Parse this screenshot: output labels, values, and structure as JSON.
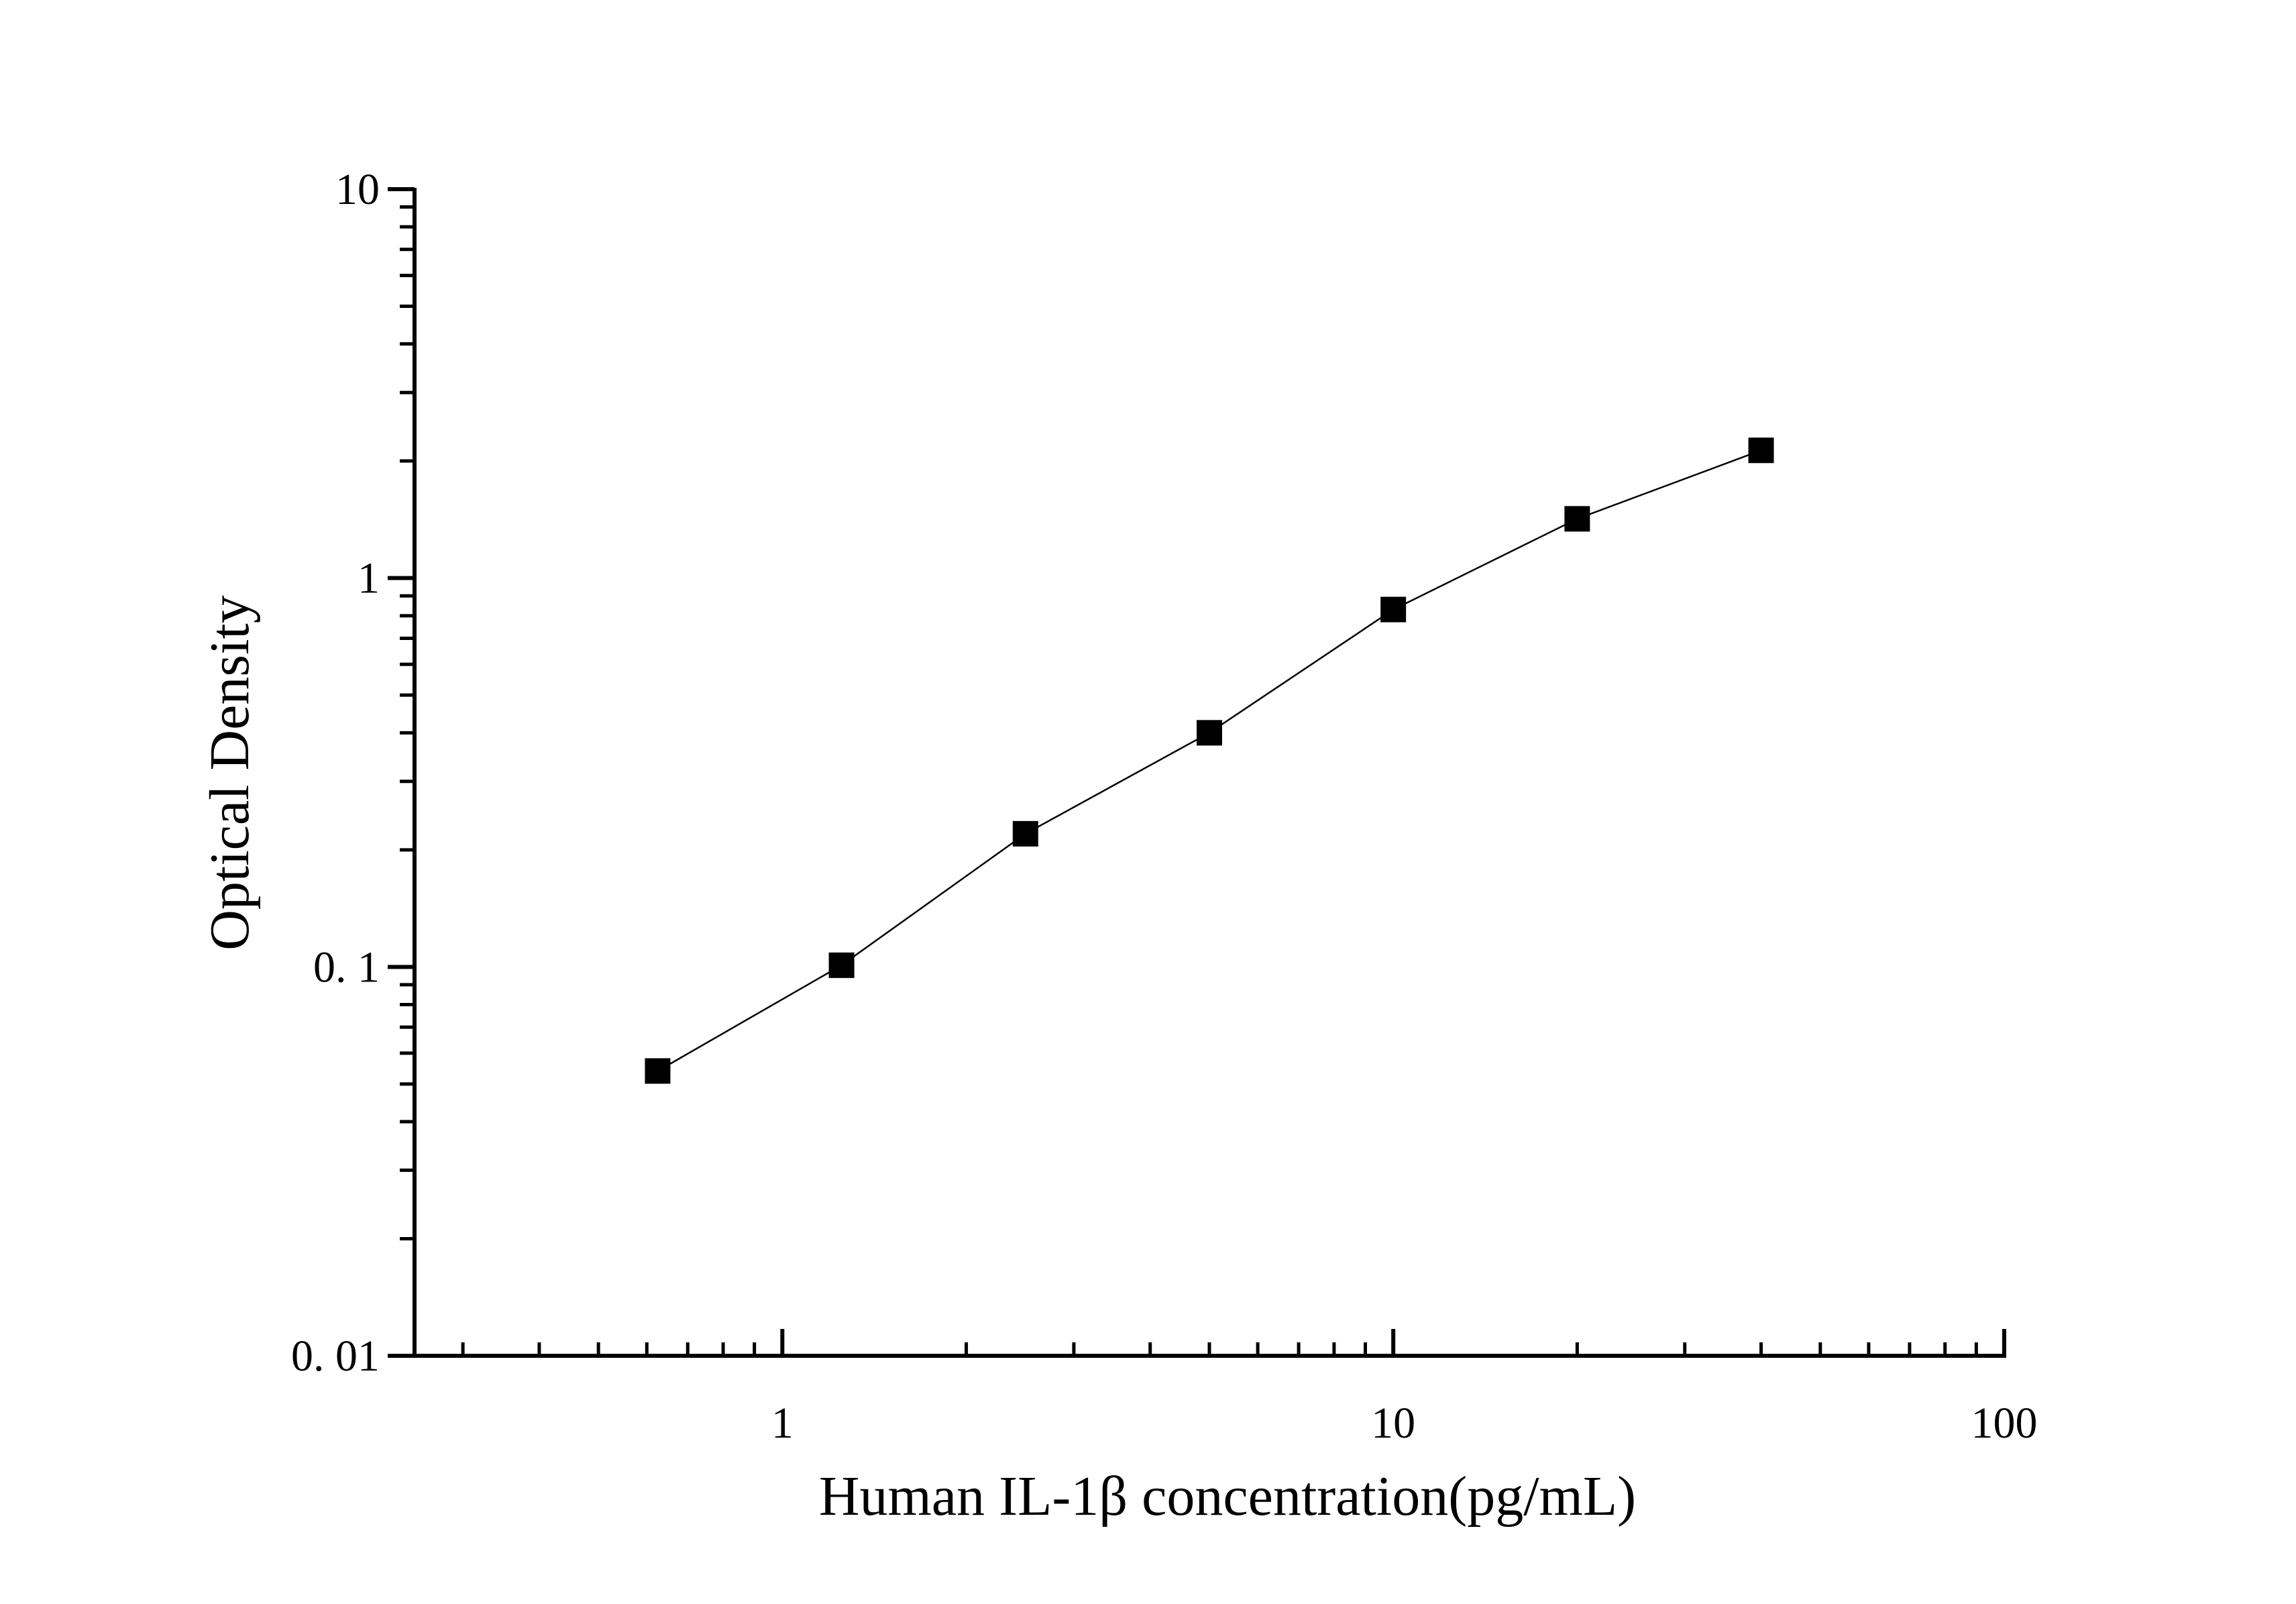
{
  "chart_data": {
    "type": "scatter",
    "title": "",
    "xlabel": "Human IL-1β concentration(pg/mL)",
    "ylabel": "Optical Density",
    "x_scale": "log",
    "y_scale": "log",
    "xlim": [
      0.25,
      100
    ],
    "ylim": [
      0.01,
      10
    ],
    "x_ticks": [
      {
        "value": 1,
        "label": "1"
      },
      {
        "value": 10,
        "label": "10"
      },
      {
        "value": 100,
        "label": "100"
      }
    ],
    "y_ticks": [
      {
        "value": 0.01,
        "label": "0. 01"
      },
      {
        "value": 0.1,
        "label": "0. 1"
      },
      {
        "value": 1,
        "label": "1"
      },
      {
        "value": 10,
        "label": "10"
      }
    ],
    "grid": false,
    "legend": "none",
    "marker": "square",
    "marker_color": "#000000",
    "line_color": "#000000",
    "series": [
      {
        "x": [
          0.625,
          1.25,
          2.5,
          5,
          10,
          20,
          40
        ],
        "y": [
          0.054,
          0.101,
          0.22,
          0.4,
          0.83,
          1.42,
          2.13
        ]
      }
    ]
  }
}
